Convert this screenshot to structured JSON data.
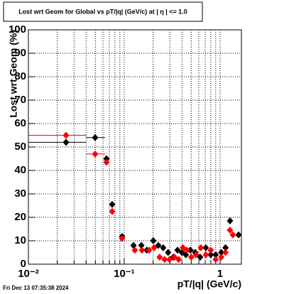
{
  "chart_data": {
    "type": "scatter",
    "title": "Lost wrt Geom for Global vs pT/|q| (GeV/c) at |  η  | <= 1.0",
    "x_label": "pT/|q| (GeV/c)",
    "y_label": "Lost wrt Geom (%)",
    "footer": "Fri Dec 13 07:35:38 2024",
    "log_x": true,
    "grid": true,
    "xlim": [
      0.01,
      1.67
    ],
    "ylim": [
      0,
      100
    ],
    "xticks": [
      {
        "value": 0.01,
        "label": "10⁻²"
      },
      {
        "value": 0.1,
        "label": "10⁻¹"
      },
      1
    ],
    "xminorticks": [
      0.02,
      0.03,
      0.04,
      0.05,
      0.06,
      0.07,
      0.08,
      0.09,
      0.2,
      0.3,
      0.4,
      0.5,
      0.6,
      0.7,
      0.8,
      0.9
    ],
    "yticks": [
      0,
      10,
      20,
      30,
      40,
      50,
      60,
      70,
      80,
      90,
      100
    ],
    "series": [
      {
        "color": "#000000",
        "x": [
          0.0247,
          0.0497,
          0.0653,
          0.0749,
          0.095,
          0.125,
          0.151,
          0.172,
          0.201,
          0.227,
          0.255,
          0.287,
          0.325,
          0.36,
          0.4,
          0.44,
          0.49,
          0.55,
          0.62,
          0.71,
          0.8,
          0.9,
          1.03,
          1.14,
          1.27,
          1.56
        ],
        "values": [
          52,
          54,
          45,
          25.5,
          11.8,
          8,
          8,
          6,
          10,
          8,
          7,
          5,
          3,
          6,
          5,
          4,
          6,
          5,
          3,
          7,
          4,
          4,
          5,
          7,
          18.5,
          12.5
        ],
        "x_low": [
          0.01,
          0.04,
          null,
          null,
          0.089,
          null,
          null,
          null,
          null,
          null,
          null,
          null,
          null,
          null,
          null,
          null,
          null,
          null,
          null,
          null,
          null,
          null,
          null,
          null,
          null,
          null
        ],
        "x_high": [
          0.04,
          0.063,
          null,
          null,
          0.1,
          null,
          null,
          null,
          null,
          null,
          null,
          null,
          null,
          null,
          null,
          null,
          null,
          null,
          null,
          null,
          null,
          null,
          null,
          null,
          null,
          null
        ]
      },
      {
        "color": "#ff0000",
        "x": [
          0.0247,
          0.0497,
          0.0653,
          0.0749,
          0.095,
          0.129,
          0.153,
          0.182,
          0.205,
          0.234,
          0.264,
          0.297,
          0.335,
          0.37,
          0.41,
          0.45,
          0.5,
          0.56,
          0.63,
          0.71,
          0.8,
          0.9,
          1.03,
          1.14,
          1.27,
          1.36
        ],
        "values": [
          55,
          47,
          43.5,
          22.5,
          11,
          6,
          6,
          6,
          7,
          3,
          2,
          2,
          3,
          2,
          7,
          6,
          3,
          4,
          7,
          4,
          6,
          2,
          3,
          5,
          14.5,
          12.5
        ],
        "x_low": [
          0.01,
          0.04,
          null,
          null,
          0.089,
          null,
          null,
          null,
          null,
          null,
          null,
          null,
          null,
          null,
          null,
          null,
          null,
          null,
          null,
          null,
          null,
          null,
          null,
          null,
          null,
          null
        ],
        "x_high": [
          0.04,
          0.063,
          null,
          null,
          0.1,
          null,
          null,
          null,
          null,
          null,
          null,
          null,
          null,
          null,
          null,
          null,
          null,
          null,
          null,
          null,
          null,
          null,
          null,
          null,
          null,
          null
        ]
      }
    ]
  }
}
